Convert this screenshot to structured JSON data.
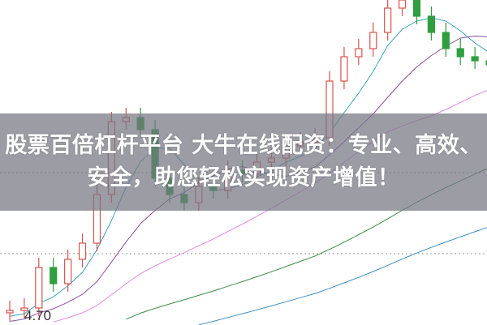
{
  "banner": {
    "line1": "股票百倍杠杆平台 大牛在线配资：专业、高效、",
    "line2": "安全，助您轻松实现资产增值！"
  },
  "chart_data": {
    "type": "candlestick",
    "price_label": "4.70",
    "ylim": [
      4.65,
      6.65
    ],
    "dotted_levels": [
      5.585,
      5.085
    ],
    "colors": {
      "up": "#d9534f",
      "down": "#2e9e3e",
      "ma": [
        "#3aa6b9",
        "#8a4fa0",
        "#e08ce0",
        "#3c8a4a",
        "#3a8fc0"
      ]
    },
    "moving_average_periods": [
      5,
      10,
      20,
      40,
      60
    ],
    "closes": [
      4.735,
      4.75,
      5.0,
      4.9,
      5.05,
      5.15,
      5.45,
      5.9,
      5.925,
      5.85,
      5.55,
      5.45,
      5.4,
      5.5,
      5.475,
      5.6,
      5.575,
      5.65,
      5.675,
      5.75,
      5.775,
      5.8,
      6.15,
      6.3,
      6.35,
      6.45,
      6.6,
      6.65,
      6.55,
      6.45,
      6.35,
      6.3,
      6.275,
      6.25
    ],
    "open_first": 4.72
  }
}
